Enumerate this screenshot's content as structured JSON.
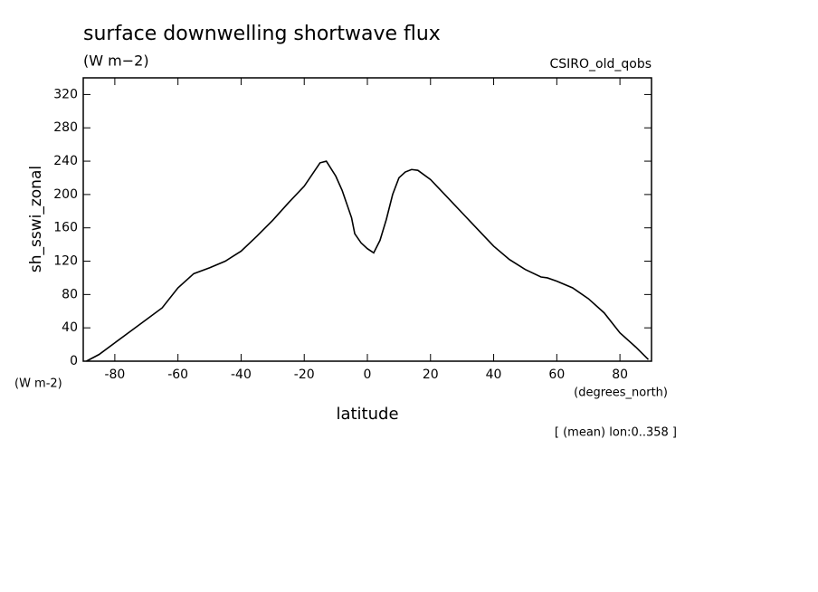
{
  "chart_data": {
    "type": "line",
    "title": "surface downwelling shortwave flux",
    "units": "(W m−2)",
    "source": "CSIRO_old_qobs",
    "y_label": "sh_sswi_zonal",
    "y_units": "(W m-2)",
    "x_label": "latitude",
    "x_units": "(degrees_north)",
    "note": "[ (mean) lon:0..358 ]",
    "x": [
      -89,
      -85,
      -80,
      -75,
      -70,
      -65,
      -60,
      -55,
      -50,
      -45,
      -40,
      -35,
      -30,
      -25,
      -20,
      -15,
      -13,
      -10,
      -8,
      -5,
      -4,
      -2,
      0,
      2,
      4,
      6,
      8,
      10,
      12,
      14,
      16,
      20,
      25,
      30,
      35,
      40,
      45,
      50,
      55,
      57,
      60,
      65,
      70,
      75,
      80,
      85,
      89
    ],
    "series": [
      {
        "name": "sh_sswi_zonal",
        "color": "#000000",
        "values": [
          0,
          8,
          22,
          36,
          50,
          64,
          88,
          105,
          112,
          120,
          132,
          150,
          169,
          190,
          210,
          238,
          240,
          222,
          205,
          172,
          153,
          142,
          135,
          130,
          145,
          170,
          200,
          220,
          227,
          230,
          229,
          218,
          198,
          178,
          158,
          138,
          122,
          110,
          101,
          100,
          96,
          88,
          75,
          58,
          34,
          17,
          2
        ]
      }
    ],
    "xlim": [
      -90,
      90
    ],
    "xticks": [
      -80,
      -60,
      -40,
      -20,
      0,
      20,
      40,
      60,
      80
    ],
    "ylim": [
      0,
      340
    ],
    "yticks": [
      0,
      40,
      80,
      120,
      160,
      200,
      240,
      280,
      320
    ]
  }
}
